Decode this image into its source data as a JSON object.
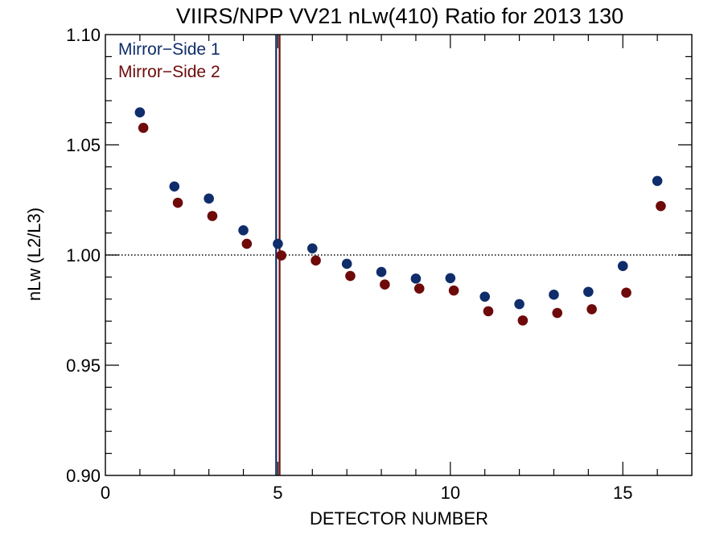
{
  "chart_data": {
    "type": "scatter",
    "title": "VIIRS/NPP VV21 nLw(410) Ratio for 2013 130",
    "xlabel": "DETECTOR NUMBER",
    "ylabel": "nLw (L2/L3)",
    "xlim": [
      0,
      17
    ],
    "ylim": [
      0.9,
      1.1
    ],
    "x_ticks": [
      0,
      5,
      10,
      15
    ],
    "x_tick_labels": [
      "0",
      "5",
      "10",
      "15"
    ],
    "y_ticks": [
      0.9,
      0.95,
      1.0,
      1.05,
      1.1
    ],
    "y_tick_labels": [
      "0.90",
      "0.95",
      "1.00",
      "1.05",
      "1.10"
    ],
    "x_minor_step": 1,
    "y_minor_step": 0.01,
    "reference_line": {
      "y": 1.0,
      "style": "dotted"
    },
    "legend_position": "top-left",
    "series": [
      {
        "name": "Mirror−Side 1",
        "color": "#0f2d6b",
        "x": [
          1,
          2,
          3,
          4,
          5,
          6,
          7,
          8,
          9,
          10,
          11,
          12,
          13,
          14,
          15,
          16
        ],
        "values": [
          1.0647,
          1.0311,
          1.0256,
          1.0112,
          1.0051,
          1.003,
          0.996,
          0.9923,
          0.9893,
          0.9895,
          0.9811,
          0.9777,
          0.982,
          0.9833,
          0.995,
          1.0336
        ],
        "vertical_line_x": 4.95
      },
      {
        "name": "Mirror−Side 2",
        "color": "#6e0a0a",
        "x": [
          1.1,
          2.1,
          3.1,
          4.1,
          5.1,
          6.1,
          7.1,
          8.1,
          9.1,
          10.1,
          11.1,
          12.1,
          13.1,
          14.1,
          15.1,
          16.1
        ],
        "values": [
          1.0577,
          1.0237,
          1.0177,
          1.0051,
          0.9998,
          0.9975,
          0.9905,
          0.9866,
          0.9848,
          0.9839,
          0.9745,
          0.9703,
          0.9737,
          0.9754,
          0.9829,
          1.0222
        ],
        "vertical_line_x": 5.05
      }
    ]
  }
}
